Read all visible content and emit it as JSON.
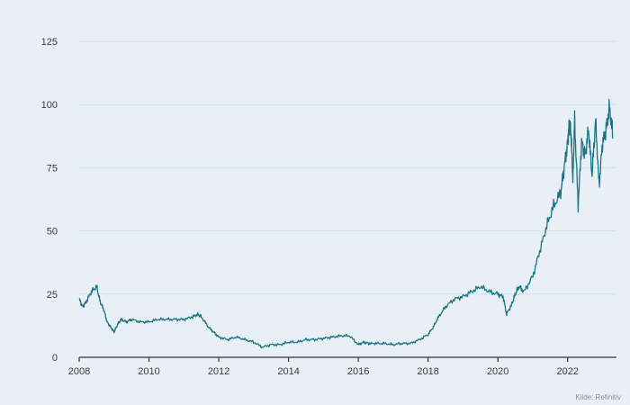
{
  "chart_data": {
    "type": "line",
    "title": "",
    "xlabel": "",
    "ylabel": "",
    "xlim": [
      2008,
      2023.4
    ],
    "ylim": [
      0,
      125
    ],
    "y_ticks": [
      0,
      25,
      50,
      75,
      100,
      125
    ],
    "x_ticks": [
      2008,
      2010,
      2012,
      2014,
      2016,
      2018,
      2020,
      2022
    ],
    "y_tick_labels": [
      "0",
      "25",
      "50",
      "75",
      "100",
      "125"
    ],
    "x_tick_labels": [
      "2008",
      "2010",
      "2012",
      "2014",
      "2016",
      "2018",
      "2020",
      "2022"
    ],
    "grid": "horizontal",
    "legend": "none",
    "line_color": "#1a7682",
    "series": [
      {
        "x": [
          2008.0,
          2008.1,
          2008.2,
          2008.35,
          2008.5,
          2008.6,
          2008.7,
          2008.8,
          2008.9,
          2009.0,
          2009.1,
          2009.2,
          2009.35,
          2009.5,
          2009.75,
          2010.0,
          2010.25,
          2010.5,
          2010.75,
          2011.0,
          2011.25,
          2011.4,
          2011.5,
          2011.7,
          2011.85,
          2012.0,
          2012.25,
          2012.5,
          2012.75,
          2013.0,
          2013.25,
          2013.5,
          2013.75,
          2014.0,
          2014.25,
          2014.5,
          2014.75,
          2015.0,
          2015.25,
          2015.5,
          2015.75,
          2016.0,
          2016.15,
          2016.3,
          2016.5,
          2016.75,
          2017.0,
          2017.25,
          2017.5,
          2017.75,
          2018.0,
          2018.15,
          2018.3,
          2018.5,
          2018.75,
          2019.0,
          2019.25,
          2019.5,
          2019.75,
          2020.0,
          2020.15,
          2020.25,
          2020.4,
          2020.5,
          2020.6,
          2020.75,
          2021.0,
          2021.2,
          2021.4,
          2021.6,
          2021.8,
          2021.9,
          2022.0,
          2022.05,
          2022.1,
          2022.15,
          2022.2,
          2022.3,
          2022.4,
          2022.5,
          2022.6,
          2022.7,
          2022.8,
          2022.9,
          2023.0,
          2023.1,
          2023.2,
          2023.3
        ],
        "y": [
          23,
          20,
          22,
          26,
          28,
          22,
          19,
          14,
          12,
          10,
          13,
          15,
          14,
          15,
          14,
          14,
          15,
          15,
          15,
          15,
          16,
          17,
          16,
          12,
          10,
          8,
          7,
          8,
          7,
          6,
          4,
          5,
          5,
          6,
          6,
          7,
          7,
          7.5,
          8,
          8.5,
          8.5,
          5,
          6,
          5.5,
          5.5,
          5.5,
          5,
          5.5,
          5.5,
          7,
          9,
          12,
          16,
          20,
          23,
          24,
          26,
          28,
          26,
          25,
          24,
          17,
          21,
          25,
          28,
          26,
          32,
          42,
          52,
          60,
          65,
          75,
          85,
          93,
          88,
          70,
          94,
          60,
          85,
          80,
          90,
          72,
          94,
          68,
          85,
          90,
          99,
          87
        ]
      }
    ]
  },
  "source": "Kilde: Refinitiv"
}
